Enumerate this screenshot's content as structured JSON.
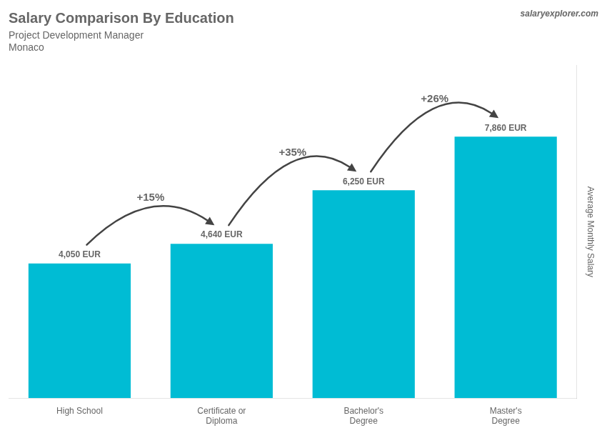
{
  "chart_data": {
    "type": "bar",
    "title": "Salary Comparison By Education",
    "subtitle": [
      "Project Development Manager",
      "Monaco"
    ],
    "source": "salaryexplorer.com",
    "ylabel": "Average Monthly Salary",
    "categories": [
      "High School",
      "Certificate or\nDiploma",
      "Bachelor's\nDegree",
      "Master's\nDegree"
    ],
    "values": [
      4050,
      4640,
      6250,
      7860
    ],
    "value_labels": [
      "4,050 EUR",
      "4,640 EUR",
      "6,250 EUR",
      "7,860 EUR"
    ],
    "color": "#00bcd4",
    "ylim": [
      0,
      10000
    ],
    "grid": false,
    "tick_labels": "x",
    "annotations": [
      {
        "from": "High School",
        "to": "Certificate or\nDiploma",
        "text": "+15%"
      },
      {
        "from": "Certificate or\nDiploma",
        "to": "Bachelor's\nDegree",
        "text": "+35%"
      },
      {
        "from": "Bachelor's\nDegree",
        "to": "Master's\nDegree",
        "text": "+26%"
      }
    ]
  }
}
